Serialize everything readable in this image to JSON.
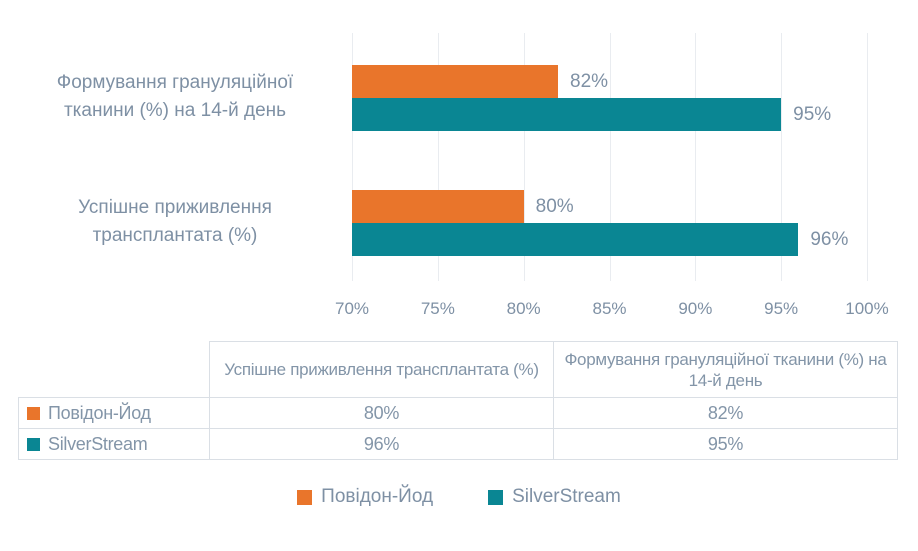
{
  "colors": {
    "povidone_iodine": "#E9752B",
    "silverstream": "#0A8693",
    "text": "#7E90A4",
    "gridline": "#E9ECF0",
    "table_border": "#DADFE5",
    "background": "#FFFFFF"
  },
  "chart_data": {
    "type": "bar",
    "orientation": "horizontal",
    "title": "",
    "xlabel": "",
    "ylabel": "",
    "xlim": [
      70,
      100
    ],
    "x_tick_labels": [
      "70%",
      "75%",
      "80%",
      "85%",
      "90%",
      "95%",
      "100%"
    ],
    "grid": true,
    "legend_position": "bottom",
    "categories": [
      "Формування грануляційної тканини (%) на 14-й день",
      "Успішне приживлення трансплантата (%)"
    ],
    "categories_lines": [
      [
        "Формування грануляційної",
        "тканини (%) на 14-й день"
      ],
      [
        "Успішне приживлення",
        "трансплантата (%)"
      ]
    ],
    "series": [
      {
        "name": "Повідон-Йод",
        "color": "#E9752B",
        "values": [
          82,
          80
        ],
        "labels": [
          "82%",
          "80%"
        ]
      },
      {
        "name": "SilverStream",
        "color": "#0A8693",
        "values": [
          95,
          96
        ],
        "labels": [
          "95%",
          "96%"
        ]
      }
    ]
  },
  "table": {
    "header": [
      "",
      "Успішне приживлення трансплантата (%)",
      "Формування грануляційної тканини (%) на 14-й день"
    ],
    "rows": [
      {
        "label": "Повідон-Йод",
        "swatch_color": "#E9752B",
        "values": [
          "80%",
          "82%"
        ]
      },
      {
        "label": "SilverStream",
        "swatch_color": "#0A8693",
        "values": [
          "96%",
          "95%"
        ]
      }
    ]
  },
  "legend": {
    "items": [
      {
        "label": "Повідон-Йод",
        "color": "#E9752B"
      },
      {
        "label": "SilverStream",
        "color": "#0A8693"
      }
    ]
  }
}
